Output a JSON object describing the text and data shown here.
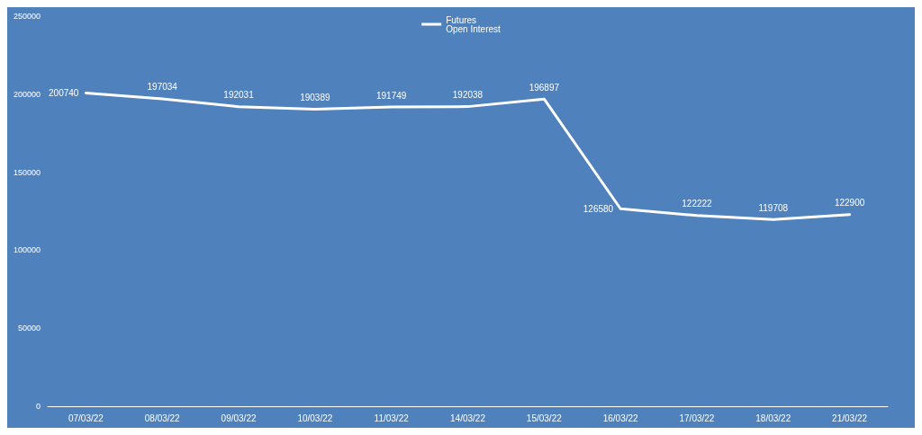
{
  "chart_data": {
    "type": "line",
    "categories": [
      "07/03/22",
      "08/03/22",
      "09/03/22",
      "10/03/22",
      "11/03/22",
      "14/03/22",
      "15/03/22",
      "16/03/22",
      "17/03/22",
      "18/03/22",
      "21/03/22"
    ],
    "series": [
      {
        "name": "Futures\nOpen Interest",
        "color": "#ffffff",
        "values": [
          200740,
          197034,
          192031,
          190389,
          191749,
          192038,
          196897,
          126580,
          122222,
          119708,
          122900
        ]
      }
    ],
    "ylim": [
      0,
      250000
    ],
    "yticks": [
      0,
      50000,
      100000,
      150000,
      200000,
      250000
    ],
    "grid": false,
    "legend": "top",
    "data_labels": true,
    "marker": "none",
    "line_style": "solid"
  }
}
